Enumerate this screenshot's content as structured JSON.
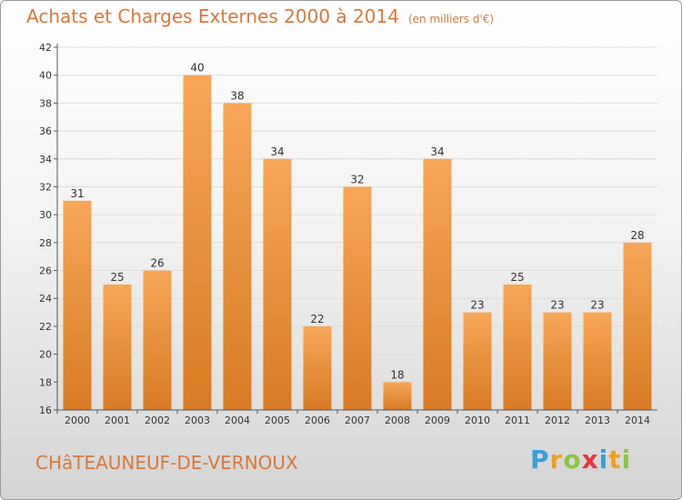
{
  "header": {
    "title": "Achats et Charges Externes 2000 à 2014",
    "unit": "(en milliers d'€)"
  },
  "footer": {
    "city": "CHâTEAUNEUF-DE-VERNOUX",
    "logo_letters": [
      "P",
      "r",
      "o",
      "x",
      "i",
      "t",
      "i"
    ],
    "logo_colors": [
      "#3aa0d8",
      "#f0a020",
      "#8cc63f",
      "#e8353c",
      "#3aa0d8",
      "#f0a020",
      "#8cc63f"
    ]
  },
  "colors": {
    "bar_top": "#f7a757",
    "bar_bottom": "#d87a22",
    "title": "#d9783a",
    "axis": "#555555"
  },
  "chart_data": {
    "type": "bar",
    "title": "Achats et Charges Externes 2000 à 2014",
    "categories": [
      "2000",
      "2001",
      "2002",
      "2003",
      "2004",
      "2005",
      "2006",
      "2007",
      "2008",
      "2009",
      "2010",
      "2011",
      "2012",
      "2013",
      "2014"
    ],
    "values": [
      31,
      25,
      26,
      40,
      38,
      34,
      22,
      32,
      18,
      34,
      23,
      25,
      23,
      23,
      28
    ],
    "ylim": [
      16,
      42
    ],
    "yticks": [
      16,
      18,
      20,
      22,
      24,
      26,
      28,
      30,
      32,
      34,
      36,
      38,
      40,
      42
    ],
    "grid": true,
    "data_labels": true
  }
}
